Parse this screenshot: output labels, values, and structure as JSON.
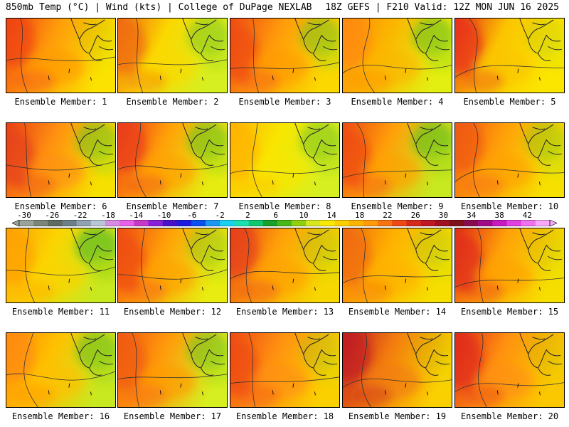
{
  "header": {
    "left": "850mb Temp (°C) | Wind (kts) | College of DuPage NEXLAB",
    "right": "18Z GEFS | F210 Valid: 12Z MON JUN 16 2025"
  },
  "panels": [
    {
      "label": "Ensemble Member: 1",
      "base": "#ff9a0a",
      "west": "#f04416",
      "east": "#fbe200",
      "green": 0.1
    },
    {
      "label": "Ensemble Member: 2",
      "base": "#fbd800",
      "west": "#f06a10",
      "east": "#d6ef20",
      "green": 0.45
    },
    {
      "label": "Ensemble Member: 3",
      "base": "#ff9a0a",
      "west": "#ee4a16",
      "east": "#fbd800",
      "green": 0.5
    },
    {
      "label": "Ensemble Member: 4",
      "base": "#fbb600",
      "west": "#ff8a0a",
      "east": "#e3ef10",
      "green": 0.6
    },
    {
      "label": "Ensemble Member: 5",
      "base": "#fbc400",
      "west": "#e83018",
      "east": "#fbe600",
      "green": 0.15
    },
    {
      "label": "Ensemble Member: 6",
      "base": "#ff9010",
      "west": "#e64018",
      "east": "#f6e000",
      "green": 0.55
    },
    {
      "label": "Ensemble Member: 7",
      "base": "#ffa008",
      "west": "#ea3c18",
      "east": "#e6ec10",
      "green": 0.6
    },
    {
      "label": "Ensemble Member: 8",
      "base": "#f8e600",
      "west": "#ffb400",
      "east": "#d6ef20",
      "green": 0.5
    },
    {
      "label": "Ensemble Member: 9",
      "base": "#ffa008",
      "west": "#ee4a16",
      "east": "#c8e820",
      "green": 0.7
    },
    {
      "label": "Ensemble Member: 10",
      "base": "#ffa008",
      "west": "#f05a14",
      "east": "#f6e000",
      "green": 0.35
    },
    {
      "label": "Ensemble Member: 11",
      "base": "#fbd400",
      "west": "#ffa008",
      "east": "#c8e820",
      "green": 0.8
    },
    {
      "label": "Ensemble Member: 12",
      "base": "#ffa008",
      "west": "#ee4a16",
      "east": "#e8ec10",
      "green": 0.35
    },
    {
      "label": "Ensemble Member: 13",
      "base": "#ffa008",
      "west": "#e64018",
      "east": "#f6d800",
      "green": 0.2
    },
    {
      "label": "Ensemble Member: 14",
      "base": "#ffb000",
      "west": "#f06a10",
      "east": "#f6de00",
      "green": 0.2
    },
    {
      "label": "Ensemble Member: 15",
      "base": "#ffa008",
      "west": "#e02a18",
      "east": "#f6de00",
      "green": 0.1
    },
    {
      "label": "Ensemble Member: 16",
      "base": "#ffc000",
      "west": "#ff8a0a",
      "east": "#c8e820",
      "green": 0.6
    },
    {
      "label": "Ensemble Member: 17",
      "base": "#ff9a0a",
      "west": "#f05a14",
      "east": "#d6ef20",
      "green": 0.55
    },
    {
      "label": "Ensemble Member: 18",
      "base": "#ff9010",
      "west": "#ee4a16",
      "east": "#fbd000",
      "green": 0.2
    },
    {
      "label": "Ensemble Member: 19",
      "base": "#f27a0e",
      "west": "#c01c22",
      "east": "#fbd000",
      "green": 0.1
    },
    {
      "label": "Ensemble Member: 20",
      "base": "#ff9010",
      "west": "#e02a18",
      "east": "#fbc800",
      "green": 0.1
    }
  ],
  "colorbar": {
    "labels": [
      "-30",
      "-26",
      "-22",
      "-18",
      "-14",
      "-10",
      "-6",
      "-2",
      "2",
      "6",
      "10",
      "14",
      "18",
      "22",
      "26",
      "30",
      "34",
      "38",
      "42"
    ],
    "colors": [
      "#9aa39a",
      "#7a867a",
      "#5f6a60",
      "#6c7f86",
      "#8fa1b2",
      "#b8c6d6",
      "#d68ae0",
      "#e860e8",
      "#c838c8",
      "#8a1fd8",
      "#4a10c8",
      "#1a1ae0",
      "#0a50f0",
      "#1898f0",
      "#18d0f0",
      "#18e0b0",
      "#10c870",
      "#18a028",
      "#48b818",
      "#90d010",
      "#d8e820",
      "#fbe800",
      "#fbd000",
      "#fbb400",
      "#ff9a0a",
      "#f87410",
      "#ee4a16",
      "#d62a1a",
      "#c01822",
      "#a01020",
      "#80101a",
      "#8a0a50",
      "#a00a88",
      "#c818c0",
      "#e040e0",
      "#f070f0",
      "#f8a8f8"
    ]
  }
}
